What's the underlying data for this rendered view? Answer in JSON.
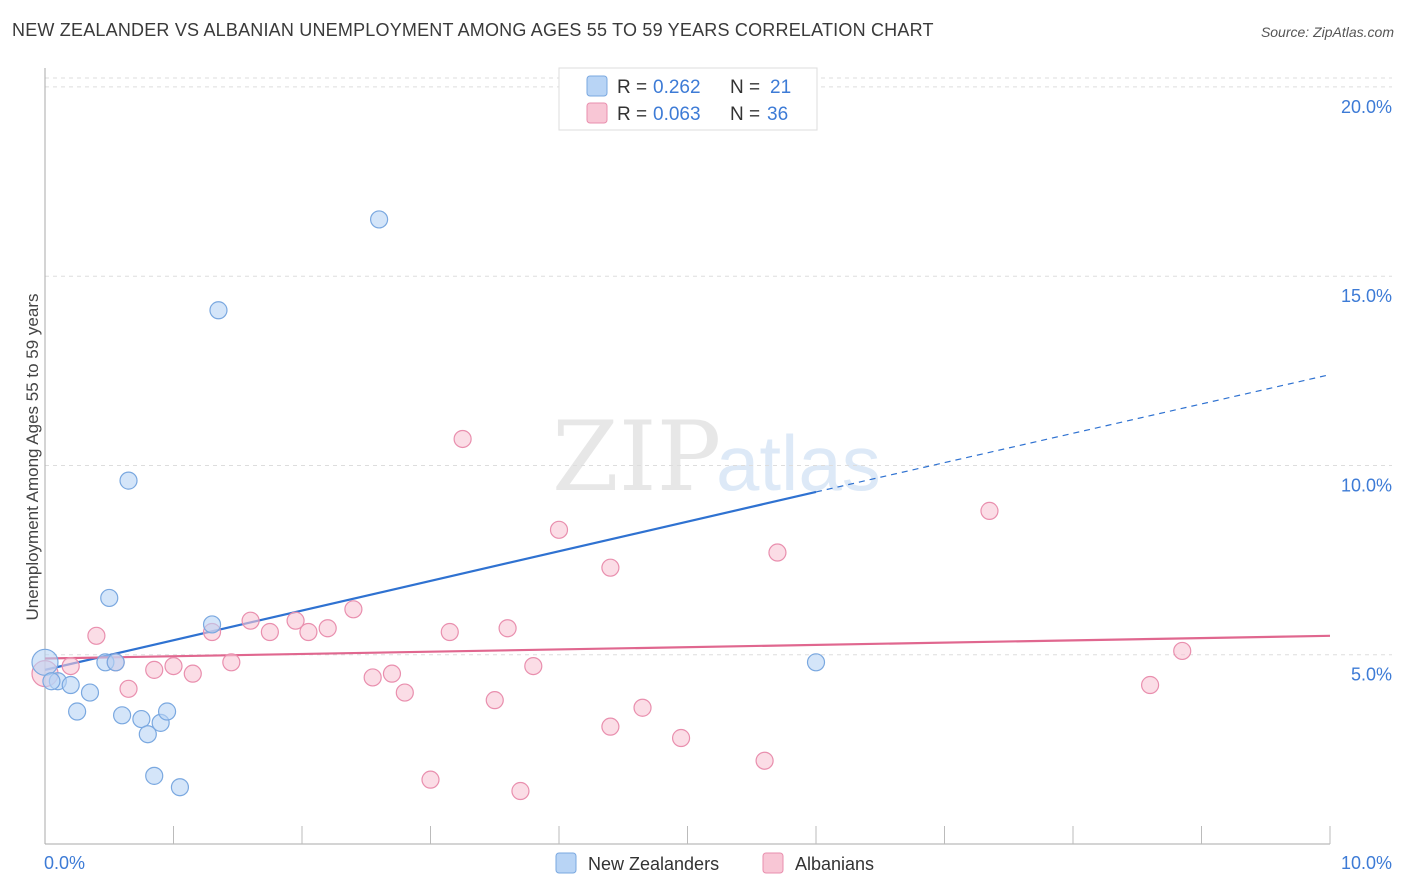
{
  "header": {
    "title": "NEW ZEALANDER VS ALBANIAN UNEMPLOYMENT AMONG AGES 55 TO 59 YEARS CORRELATION CHART",
    "source": "Source: ZipAtlas.com"
  },
  "watermark": {
    "zip": "ZIP",
    "atlas": "atlas"
  },
  "colors": {
    "blue_fill": "#b8d4f5",
    "blue_stroke": "#7aa8e0",
    "blue_line": "#2f72d1",
    "pink_fill": "#f8c6d5",
    "pink_stroke": "#e98fae",
    "pink_line": "#e0678f",
    "tick_text": "#3d7bd6",
    "grid": "#dddddd"
  },
  "legend": {
    "rows": [
      {
        "r_label": "R =",
        "r_value": "0.262",
        "n_label": "N =",
        "n_value": "21",
        "series": "blue"
      },
      {
        "r_label": "R =",
        "r_value": "0.063",
        "n_label": "N =",
        "n_value": "36",
        "series": "pink"
      }
    ]
  },
  "chart_data": {
    "type": "scatter",
    "title": "NEW ZEALANDER VS ALBANIAN UNEMPLOYMENT AMONG AGES 55 TO 59 YEARS CORRELATION CHART",
    "xlabel": "",
    "ylabel": "Unemployment Among Ages 55 to 59 years",
    "xlim": [
      0,
      10
    ],
    "ylim": [
      0,
      20.5
    ],
    "x_tick_labels": [
      "0.0%",
      "10.0%"
    ],
    "y_ticks": [
      5,
      10,
      15,
      20
    ],
    "y_tick_labels": [
      "5.0%",
      "10.0%",
      "15.0%",
      "20.0%"
    ],
    "grid": true,
    "series": [
      {
        "name": "New Zealanders",
        "color": "blue",
        "points": [
          [
            0.0,
            4.8
          ],
          [
            0.1,
            4.3
          ],
          [
            0.2,
            4.2
          ],
          [
            0.35,
            4.0
          ],
          [
            0.5,
            6.5
          ],
          [
            0.47,
            4.8
          ],
          [
            0.55,
            4.8
          ],
          [
            0.65,
            9.6
          ],
          [
            0.6,
            3.4
          ],
          [
            0.75,
            3.3
          ],
          [
            0.8,
            2.9
          ],
          [
            0.85,
            1.8
          ],
          [
            0.9,
            3.2
          ],
          [
            0.95,
            3.5
          ],
          [
            1.05,
            1.5
          ],
          [
            1.3,
            5.8
          ],
          [
            1.35,
            14.1
          ],
          [
            2.6,
            16.5
          ],
          [
            6.0,
            4.8
          ],
          [
            0.05,
            4.3
          ],
          [
            0.25,
            3.5
          ]
        ],
        "trend": {
          "x_start": 0.0,
          "y_start": 4.6,
          "x_end": 6.0,
          "y_end": 9.3,
          "dashed_to_x": 10.0,
          "dashed_to_y": 12.4
        }
      },
      {
        "name": "Albanians",
        "color": "pink",
        "points": [
          [
            0.0,
            4.5
          ],
          [
            0.2,
            4.7
          ],
          [
            0.4,
            5.5
          ],
          [
            0.55,
            4.8
          ],
          [
            0.65,
            4.1
          ],
          [
            0.85,
            4.6
          ],
          [
            1.0,
            4.7
          ],
          [
            1.15,
            4.5
          ],
          [
            1.3,
            5.6
          ],
          [
            1.45,
            4.8
          ],
          [
            1.6,
            5.9
          ],
          [
            1.75,
            5.6
          ],
          [
            1.95,
            5.9
          ],
          [
            2.05,
            5.6
          ],
          [
            2.2,
            5.7
          ],
          [
            2.4,
            6.2
          ],
          [
            2.55,
            4.4
          ],
          [
            2.7,
            4.5
          ],
          [
            2.8,
            4.0
          ],
          [
            3.0,
            1.7
          ],
          [
            3.15,
            5.6
          ],
          [
            3.25,
            10.7
          ],
          [
            3.5,
            3.8
          ],
          [
            3.6,
            5.7
          ],
          [
            3.7,
            1.4
          ],
          [
            3.8,
            4.7
          ],
          [
            4.0,
            8.3
          ],
          [
            4.4,
            7.3
          ],
          [
            4.4,
            3.1
          ],
          [
            4.65,
            3.6
          ],
          [
            4.95,
            2.8
          ],
          [
            5.6,
            2.2
          ],
          [
            5.7,
            7.7
          ],
          [
            7.35,
            8.8
          ],
          [
            8.6,
            4.2
          ],
          [
            8.85,
            5.1
          ]
        ],
        "trend": {
          "x_start": 0.0,
          "y_start": 4.9,
          "x_end": 10.0,
          "y_end": 5.5
        }
      }
    ]
  },
  "bottom_legend": {
    "items": [
      {
        "label": "New Zealanders",
        "series": "blue"
      },
      {
        "label": "Albanians",
        "series": "pink"
      }
    ]
  }
}
